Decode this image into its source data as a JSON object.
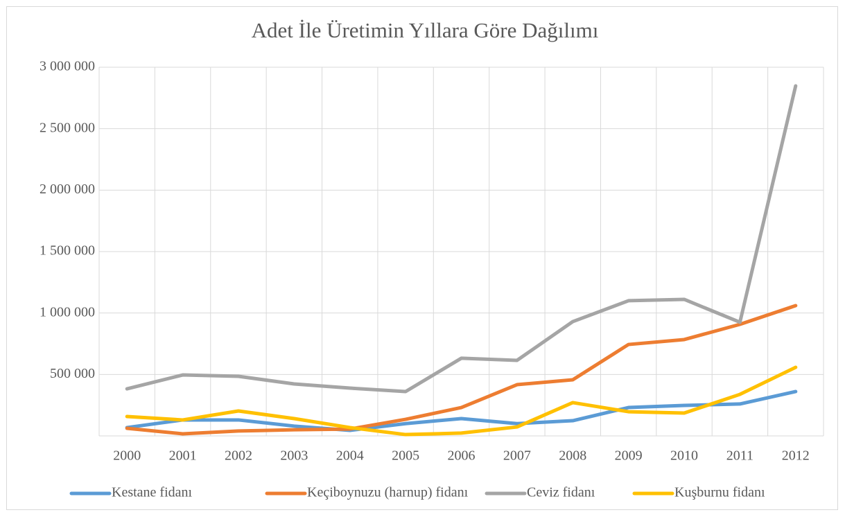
{
  "chart_data": {
    "type": "line",
    "title": "Adet İle Üretimin Yıllara Göre Dağılımı",
    "categories": [
      "2000",
      "2001",
      "2002",
      "2003",
      "2004",
      "2005",
      "2006",
      "2007",
      "2008",
      "2009",
      "2010",
      "2011",
      "2012"
    ],
    "series": [
      {
        "name": "Kestane fidanı",
        "color": "#5b9bd5",
        "values": [
          68000,
          130000,
          130000,
          80000,
          45000,
          100000,
          141000,
          100000,
          124000,
          231000,
          248000,
          260000,
          361000
        ]
      },
      {
        "name": "Keçiboynuzu (harnup) fidanı",
        "color": "#ed7d31",
        "values": [
          62000,
          17000,
          40000,
          50000,
          56000,
          135000,
          231000,
          417000,
          457000,
          744000,
          784000,
          908000,
          1060000
        ]
      },
      {
        "name": "Ceviz fidanı",
        "color": "#a5a5a5",
        "values": [
          383000,
          496000,
          485000,
          423000,
          389000,
          361000,
          632000,
          615000,
          930000,
          1100000,
          1111000,
          925000,
          2848000
        ]
      },
      {
        "name": "Kuşburnu fidanı",
        "color": "#ffc000",
        "values": [
          158000,
          130000,
          203000,
          141000,
          68000,
          11000,
          23000,
          73000,
          271000,
          197000,
          186000,
          338000,
          558000
        ]
      }
    ],
    "ylim": [
      0,
      3000000
    ],
    "yticks": [
      {
        "value": 500000,
        "label": "500 000"
      },
      {
        "value": 1000000,
        "label": "1 000 000"
      },
      {
        "value": 1500000,
        "label": "1 500 000"
      },
      {
        "value": 2000000,
        "label": "2 000 000"
      },
      {
        "value": 2500000,
        "label": "2 500 000"
      },
      {
        "value": 3000000,
        "label": "3 000 000"
      }
    ],
    "grid": true,
    "legend": "bottom"
  }
}
